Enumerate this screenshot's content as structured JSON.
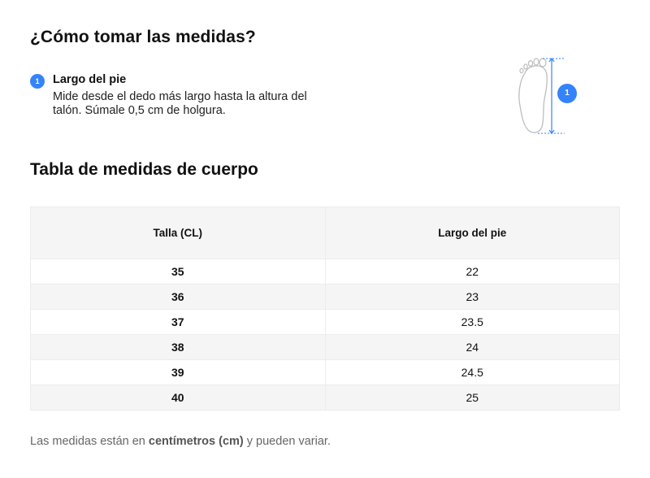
{
  "howto": {
    "title": "¿Cómo tomar las medidas?",
    "steps": [
      {
        "number": "1",
        "label": "Largo del pie",
        "description": "Mide desde el dedo más largo hasta la altura del talón. Súmale 0,5 cm de holgura."
      }
    ],
    "illustration_badge": "1",
    "illustration_icon": "foot-outline-icon"
  },
  "table": {
    "title": "Tabla de medidas de cuerpo",
    "headers": [
      "Talla (CL)",
      "Largo del pie"
    ],
    "rows": [
      [
        "35",
        "22"
      ],
      [
        "36",
        "23"
      ],
      [
        "37",
        "23.5"
      ],
      [
        "38",
        "24"
      ],
      [
        "39",
        "24.5"
      ],
      [
        "40",
        "25"
      ]
    ]
  },
  "note": {
    "prefix": "Las medidas están en ",
    "emphasis": "centímetros (cm)",
    "suffix": " y pueden variar."
  },
  "colors": {
    "accent": "#3483fa",
    "header_bg": "#f5f5f5",
    "muted_text": "#666666"
  }
}
